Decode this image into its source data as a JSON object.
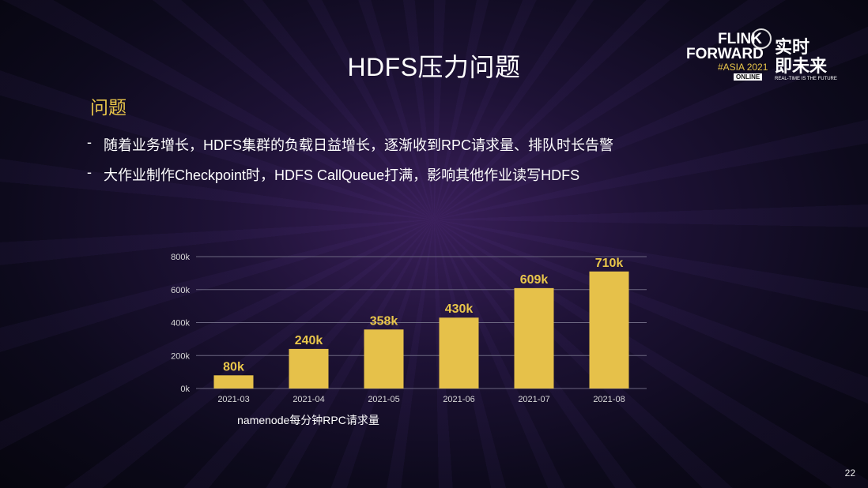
{
  "slide": {
    "title": "HDFS压力问题",
    "section": "问题",
    "bullets": [
      "随着业务增长，HDFS集群的负载日益增长，逐渐收到RPC请求量、排队时长告警",
      "大作业制作Checkpoint时，HDFS CallQueue打满，影响其他作业读写HDFS"
    ],
    "bullet_marker": "-",
    "page_number": "22"
  },
  "logo": {
    "line1": "FLINK",
    "line2": "FORWARD",
    "event": "#ASIA 2021",
    "badge": "ONLINE",
    "cn_line1": "实时",
    "cn_line2": "即未来",
    "tagline": "REAL-TIME IS THE FUTURE"
  },
  "colors": {
    "bar": "#e6c14a",
    "accent": "#e9c64a",
    "label": "#e9c64a",
    "grid": "#6b6680",
    "axis_text": "#d8d8d8"
  },
  "chart_data": {
    "type": "bar",
    "categories": [
      "2021-03",
      "2021-04",
      "2021-05",
      "2021-06",
      "2021-07",
      "2021-08"
    ],
    "values": [
      80000,
      240000,
      358000,
      430000,
      609000,
      710000
    ],
    "data_labels": [
      "80k",
      "240k",
      "358k",
      "430k",
      "609k",
      "710k"
    ],
    "yticks": [
      "0k",
      "200k",
      "400k",
      "600k",
      "800k"
    ],
    "ytick_values": [
      0,
      200000,
      400000,
      600000,
      800000
    ],
    "ylim": [
      0,
      800000
    ],
    "xlabel": "namenode每分钟RPC请求量",
    "ylabel": "",
    "title": "",
    "grid": true
  }
}
